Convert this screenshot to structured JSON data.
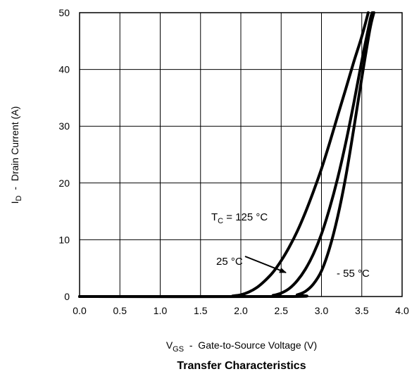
{
  "chart_data": {
    "type": "line",
    "title": "Transfer Characteristics",
    "xlabel": {
      "main": "V",
      "sub": "GS",
      "rest": "  -  Gate-to-Source Voltage (V)"
    },
    "ylabel": {
      "main": "I",
      "sub": "D",
      "rest": "  -  Drain Current (A)"
    },
    "xlim": [
      0.0,
      4.0
    ],
    "ylim": [
      0,
      50
    ],
    "xticks": [
      "0.0",
      "0.5",
      "1.0",
      "1.5",
      "2.0",
      "2.5",
      "3.0",
      "3.5",
      "4.0"
    ],
    "yticks": [
      "0",
      "10",
      "20",
      "30",
      "40",
      "50"
    ],
    "grid": true,
    "series": [
      {
        "name": "TC = 125 °C",
        "points": [
          [
            0.0,
            0
          ],
          [
            1.8,
            0
          ],
          [
            1.9,
            0.1
          ],
          [
            2.0,
            0.3
          ],
          [
            2.1,
            0.8
          ],
          [
            2.2,
            1.6
          ],
          [
            2.3,
            2.8
          ],
          [
            2.4,
            4.3
          ],
          [
            2.5,
            6.3
          ],
          [
            2.6,
            8.7
          ],
          [
            2.7,
            11.5
          ],
          [
            2.8,
            14.8
          ],
          [
            2.9,
            18.5
          ],
          [
            3.0,
            22.5
          ],
          [
            3.1,
            27.0
          ],
          [
            3.2,
            31.8
          ],
          [
            3.3,
            36.5
          ],
          [
            3.4,
            41.3
          ],
          [
            3.5,
            45.8
          ],
          [
            3.58,
            50.0
          ]
        ]
      },
      {
        "name": "25 °C",
        "points": [
          [
            0.0,
            0
          ],
          [
            2.3,
            0
          ],
          [
            2.4,
            0.2
          ],
          [
            2.5,
            0.6
          ],
          [
            2.6,
            1.4
          ],
          [
            2.7,
            2.8
          ],
          [
            2.8,
            4.8
          ],
          [
            2.9,
            7.5
          ],
          [
            3.0,
            11.0
          ],
          [
            3.1,
            15.5
          ],
          [
            3.2,
            20.8
          ],
          [
            3.3,
            27.0
          ],
          [
            3.4,
            34.0
          ],
          [
            3.5,
            41.5
          ],
          [
            3.6,
            48.5
          ],
          [
            3.63,
            50.0
          ]
        ]
      },
      {
        "name": "- 55 °C",
        "points": [
          [
            0.0,
            0
          ],
          [
            2.6,
            0
          ],
          [
            2.7,
            0.3
          ],
          [
            2.8,
            0.9
          ],
          [
            2.9,
            2.2
          ],
          [
            3.0,
            4.5
          ],
          [
            3.1,
            8.5
          ],
          [
            3.2,
            14.0
          ],
          [
            3.3,
            21.0
          ],
          [
            3.4,
            29.5
          ],
          [
            3.5,
            38.5
          ],
          [
            3.6,
            47.0
          ],
          [
            3.65,
            50.0
          ]
        ]
      }
    ],
    "annotations": [
      {
        "id": "tc125",
        "main": "T",
        "sub": "C",
        "rest": " = 125 °C"
      },
      {
        "id": "t25",
        "text": "25 °C"
      },
      {
        "id": "tm55",
        "text": "-  55 °C"
      }
    ]
  }
}
